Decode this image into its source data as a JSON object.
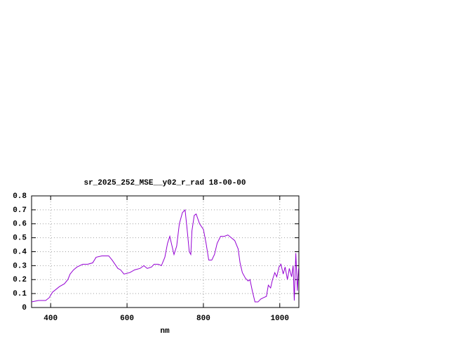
{
  "chart_data": {
    "type": "line",
    "title": "sr_2025_252_MSE__y02_r_rad 18-00-00",
    "x_label": "nm",
    "xlim": [
      350,
      1050
    ],
    "xticks": [
      400,
      600,
      800,
      1000
    ],
    "ylim": [
      0,
      0.8
    ],
    "yticks": [
      0,
      0.1,
      0.2,
      0.3,
      0.4,
      0.5,
      0.6,
      0.7,
      0.8
    ],
    "grid": true,
    "color": "#9400d3",
    "x": [
      350,
      368,
      387,
      396,
      405,
      423,
      436,
      445,
      451,
      460,
      469,
      484,
      497,
      510,
      519,
      534,
      552,
      561,
      576,
      583,
      592,
      607,
      620,
      634,
      644,
      653,
      664,
      671,
      682,
      690,
      699,
      706,
      712,
      717,
      723,
      730,
      737,
      745,
      752,
      757,
      763,
      767,
      770,
      776,
      781,
      790,
      800,
      807,
      814,
      822,
      829,
      836,
      845,
      855,
      864,
      873,
      882,
      891,
      896,
      902,
      910,
      917,
      922,
      928,
      935,
      943,
      950,
      957,
      965,
      970,
      976,
      981,
      987,
      992,
      998,
      1003,
      1009,
      1014,
      1020,
      1025,
      1031,
      1035,
      1038,
      1042,
      1046,
      1049
    ],
    "values": [
      0.04,
      0.05,
      0.05,
      0.07,
      0.11,
      0.15,
      0.17,
      0.2,
      0.24,
      0.27,
      0.29,
      0.31,
      0.31,
      0.32,
      0.36,
      0.37,
      0.37,
      0.34,
      0.28,
      0.27,
      0.24,
      0.25,
      0.27,
      0.28,
      0.3,
      0.28,
      0.29,
      0.31,
      0.31,
      0.3,
      0.36,
      0.46,
      0.51,
      0.45,
      0.38,
      0.44,
      0.6,
      0.68,
      0.7,
      0.57,
      0.4,
      0.38,
      0.55,
      0.66,
      0.67,
      0.6,
      0.56,
      0.46,
      0.34,
      0.34,
      0.38,
      0.46,
      0.51,
      0.51,
      0.52,
      0.5,
      0.48,
      0.42,
      0.32,
      0.25,
      0.21,
      0.19,
      0.2,
      0.12,
      0.04,
      0.04,
      0.06,
      0.07,
      0.08,
      0.16,
      0.14,
      0.2,
      0.25,
      0.22,
      0.29,
      0.31,
      0.24,
      0.29,
      0.2,
      0.28,
      0.22,
      0.3,
      0.05,
      0.39,
      0.12,
      0.28
    ]
  }
}
